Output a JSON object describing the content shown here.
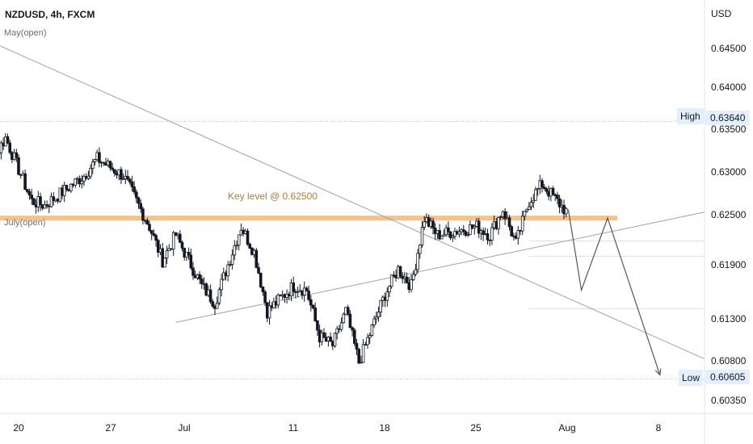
{
  "header": {
    "symbol": "NZDUSD, 4h, FXCM"
  },
  "axis": {
    "currency": "USD",
    "price_ticks": [
      "0.64500",
      "0.64000",
      "0.63500",
      "0.63000",
      "0.62500",
      "0.61900",
      "0.61300",
      "0.60800",
      "0.60350"
    ],
    "time_ticks": [
      "20",
      "27",
      "Jul",
      "11",
      "18",
      "25",
      "Aug",
      "8"
    ]
  },
  "levels": {
    "high_label": "High",
    "high_price": "0.63640",
    "low_label": "Low",
    "low_price": "0.60605",
    "may_open": "May(open)",
    "july_open": "July(open)"
  },
  "annotation": {
    "key_level": "Key level @ 0.62500"
  },
  "colors": {
    "up": "#26a69a",
    "down": "#131722",
    "candle_fill": "#ffffff",
    "key_level_band": "#f5c389",
    "annotation_text": "#b87a34",
    "trendline": "#9ea1aa",
    "projection": "#555555",
    "tag_bg": "#e3effd"
  },
  "chart_data": {
    "type": "candlestick",
    "symbol": "NZDUSD",
    "interval": "4h",
    "broker": "FXCM",
    "currency": "USD",
    "ylim": [
      0.602,
      0.65
    ],
    "y_ticks": [
      0.645,
      0.64,
      0.635,
      0.63,
      0.625,
      0.619,
      0.613,
      0.608,
      0.6035
    ],
    "x_ticks": [
      "20",
      "27",
      "Jul",
      "11",
      "18",
      "25",
      "Aug",
      "8"
    ],
    "grid": false,
    "high": 0.6364,
    "low": 0.60605,
    "key_level": 0.625,
    "ohlc_keypoints": [
      {
        "t": "Jun 16",
        "price": 0.633
      },
      {
        "t": "Jun 17",
        "price": 0.629
      },
      {
        "t": "Jun 19",
        "price": 0.6345
      },
      {
        "t": "Jun 21",
        "price": 0.627
      },
      {
        "t": "Jun 22",
        "price": 0.6265
      },
      {
        "t": "Jun 25",
        "price": 0.63
      },
      {
        "t": "Jun 26",
        "price": 0.632
      },
      {
        "t": "Jun 28",
        "price": 0.63
      },
      {
        "t": "Jun 30",
        "price": 0.624
      },
      {
        "t": "Jul 1",
        "price": 0.62
      },
      {
        "t": "Jul 2",
        "price": 0.623
      },
      {
        "t": "Jul 4",
        "price": 0.617
      },
      {
        "t": "Jul 5",
        "price": 0.615
      },
      {
        "t": "Jul 7",
        "price": 0.624
      },
      {
        "t": "Jul 8",
        "price": 0.621
      },
      {
        "t": "Jul 9",
        "price": 0.614
      },
      {
        "t": "Jul 11",
        "price": 0.617
      },
      {
        "t": "Jul 12",
        "price": 0.6165
      },
      {
        "t": "Jul 13",
        "price": 0.611
      },
      {
        "t": "Jul 14",
        "price": 0.61
      },
      {
        "t": "Jul 15",
        "price": 0.614
      },
      {
        "t": "Jul 16",
        "price": 0.608
      },
      {
        "t": "Jul 18",
        "price": 0.616
      },
      {
        "t": "Jul 19",
        "price": 0.619
      },
      {
        "t": "Jul 20",
        "price": 0.617
      },
      {
        "t": "Jul 21",
        "price": 0.625
      },
      {
        "t": "Jul 22",
        "price": 0.623
      },
      {
        "t": "Jul 25",
        "price": 0.624
      },
      {
        "t": "Jul 26",
        "price": 0.623
      },
      {
        "t": "Jul 27",
        "price": 0.626
      },
      {
        "t": "Jul 28",
        "price": 0.622
      },
      {
        "t": "Jul 29",
        "price": 0.627
      },
      {
        "t": "Jul 30",
        "price": 0.629
      },
      {
        "t": "Aug 1",
        "price": 0.6255
      }
    ],
    "projection_path": [
      {
        "t": "Aug 1",
        "price": 0.626
      },
      {
        "t": "Aug 2",
        "price": 0.6165
      },
      {
        "t": "Aug 4",
        "price": 0.625
      },
      {
        "t": "Aug 8",
        "price": 0.6065
      }
    ],
    "annotations": [
      "Key level @ 0.62500",
      "May(open)",
      "July(open)",
      "High",
      "Low"
    ]
  }
}
